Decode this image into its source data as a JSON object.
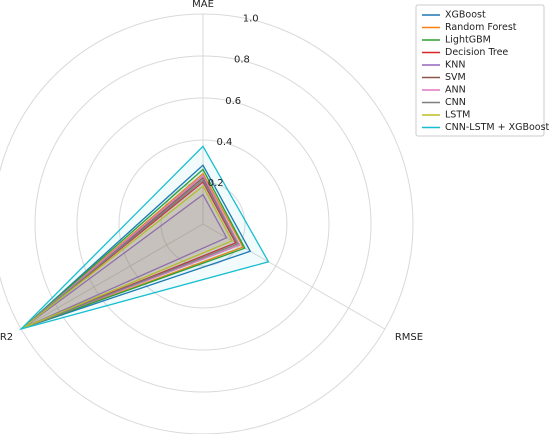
{
  "chart_data": {
    "type": "radar",
    "axes": [
      "MAE",
      "RMSE",
      "R2"
    ],
    "rlim": [
      0,
      1.0
    ],
    "radial_ticks": [
      0.2,
      0.4,
      0.6,
      0.8,
      1.0
    ],
    "radial_tick_labels": [
      "0.2",
      "0.4",
      "0.6",
      "0.8",
      "1.0"
    ],
    "grid": true,
    "legend_position": "top-right",
    "series": [
      {
        "name": "XGBoost",
        "color": "#1f77b4",
        "values": [
          0.28,
          0.26,
          0.99
        ]
      },
      {
        "name": "Random Forest",
        "color": "#ff7f0e",
        "values": [
          0.24,
          0.22,
          0.99
        ]
      },
      {
        "name": "LightGBM",
        "color": "#2ca02c",
        "values": [
          0.26,
          0.23,
          0.99
        ]
      },
      {
        "name": "Decision Tree",
        "color": "#d62728",
        "values": [
          0.2,
          0.18,
          0.99
        ]
      },
      {
        "name": "KNN",
        "color": "#9467bd",
        "values": [
          0.14,
          0.13,
          0.99
        ]
      },
      {
        "name": "SVM",
        "color": "#8c564b",
        "values": [
          0.22,
          0.2,
          0.99
        ]
      },
      {
        "name": "ANN",
        "color": "#e377c2",
        "values": [
          0.23,
          0.2,
          0.99
        ]
      },
      {
        "name": "CNN",
        "color": "#7f7f7f",
        "values": [
          0.21,
          0.19,
          0.99
        ]
      },
      {
        "name": "LSTM",
        "color": "#bcbd22",
        "values": [
          0.18,
          0.16,
          0.99
        ]
      },
      {
        "name": "CNN-LSTM + XGBoost",
        "color": "#17becf",
        "values": [
          0.37,
          0.36,
          1.0
        ]
      }
    ]
  }
}
